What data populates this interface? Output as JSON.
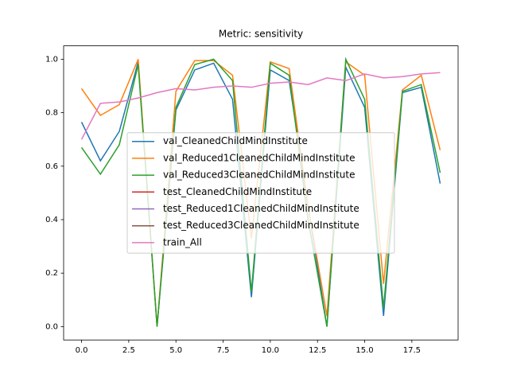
{
  "chart_data": {
    "type": "line",
    "title": "Metric: sensitivity",
    "x": [
      0,
      1,
      2,
      3,
      4,
      5,
      6,
      7,
      8,
      9,
      10,
      11,
      12,
      13,
      14,
      15,
      16,
      17,
      18,
      19
    ],
    "xlim": [
      -0.95,
      19.95
    ],
    "xticks": [
      {
        "value": 0,
        "label": "0.0"
      },
      {
        "value": 2.5,
        "label": "2.5"
      },
      {
        "value": 5,
        "label": "5.0"
      },
      {
        "value": 7.5,
        "label": "7.5"
      },
      {
        "value": 10,
        "label": "10.0"
      },
      {
        "value": 12.5,
        "label": "12.5"
      },
      {
        "value": 15,
        "label": "15.0"
      },
      {
        "value": 17.5,
        "label": "17.5"
      }
    ],
    "ylim": [
      -0.05,
      1.05
    ],
    "yticks": [
      {
        "value": 0,
        "label": "0.0"
      },
      {
        "value": 0.2,
        "label": "0.2"
      },
      {
        "value": 0.4,
        "label": "0.4"
      },
      {
        "value": 0.6,
        "label": "0.6"
      },
      {
        "value": 0.8,
        "label": "0.8"
      },
      {
        "value": 1,
        "label": "1.0"
      }
    ],
    "grid": false,
    "legend": "center",
    "series": [
      {
        "name": "val_CleanedChildMindInstitute",
        "color": "#1f77b4",
        "values": [
          0.765,
          0.62,
          0.73,
          0.99,
          0.0,
          0.81,
          0.96,
          0.985,
          0.85,
          0.11,
          0.96,
          0.92,
          0.45,
          0.0,
          0.97,
          0.82,
          0.04,
          0.875,
          0.895,
          0.535
        ]
      },
      {
        "name": "val_Reduced1CleanedChildMindInstitute",
        "color": "#ff7f0e",
        "values": [
          0.89,
          0.79,
          0.83,
          1.0,
          0.0,
          0.88,
          0.995,
          0.995,
          0.94,
          0.33,
          0.99,
          0.965,
          0.45,
          0.04,
          0.99,
          0.94,
          0.16,
          0.885,
          0.94,
          0.66
        ]
      },
      {
        "name": "val_Reduced3CleanedChildMindInstitute",
        "color": "#2ca02c",
        "values": [
          0.67,
          0.57,
          0.68,
          0.98,
          0.0,
          0.82,
          0.98,
          1.0,
          0.92,
          0.13,
          0.985,
          0.94,
          0.4,
          0.0,
          1.0,
          0.85,
          0.07,
          0.88,
          0.905,
          0.575
        ]
      },
      {
        "name": "test_CleanedChildMindInstitute",
        "color": "#d62728",
        "values": [
          null,
          null,
          null,
          null,
          null,
          null,
          null,
          null,
          null,
          null,
          null,
          null,
          null,
          null,
          null,
          null,
          null,
          null,
          null,
          null
        ]
      },
      {
        "name": "test_Reduced1CleanedChildMindInstitute",
        "color": "#9467bd",
        "values": [
          null,
          null,
          null,
          null,
          null,
          null,
          null,
          null,
          null,
          null,
          null,
          null,
          null,
          null,
          null,
          null,
          null,
          null,
          null,
          null
        ]
      },
      {
        "name": "test_Reduced3CleanedChildMindInstitute",
        "color": "#8c564b",
        "values": [
          null,
          null,
          null,
          null,
          null,
          null,
          null,
          null,
          null,
          null,
          null,
          null,
          null,
          null,
          null,
          null,
          null,
          null,
          null,
          null
        ]
      },
      {
        "name": "train_All",
        "color": "#e377c2",
        "values": [
          0.7,
          0.835,
          0.84,
          0.855,
          0.875,
          0.89,
          0.885,
          0.895,
          0.9,
          0.895,
          0.91,
          0.915,
          0.905,
          0.93,
          0.92,
          0.945,
          0.93,
          0.935,
          0.945,
          0.95
        ]
      }
    ]
  }
}
